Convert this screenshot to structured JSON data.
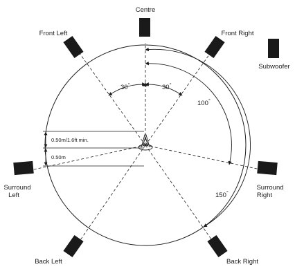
{
  "speakers": {
    "centre": "Centre",
    "front_left": "Front Left",
    "front_right": "Front Right",
    "subwoofer": "Subwoofer",
    "surround_left_1": "Surround",
    "surround_left_2": "Left",
    "surround_right_1": "Surround",
    "surround_right_2": "Right",
    "back_left": "Back Left",
    "back_right": "Back Right"
  },
  "angles": {
    "left_30": "30",
    "right_30": "30",
    "a100": "100",
    "a150": "150",
    "degree_mark": "°"
  },
  "dimensions": {
    "min_height": "0.50m/1.6ft min.",
    "height": "0.50m"
  }
}
